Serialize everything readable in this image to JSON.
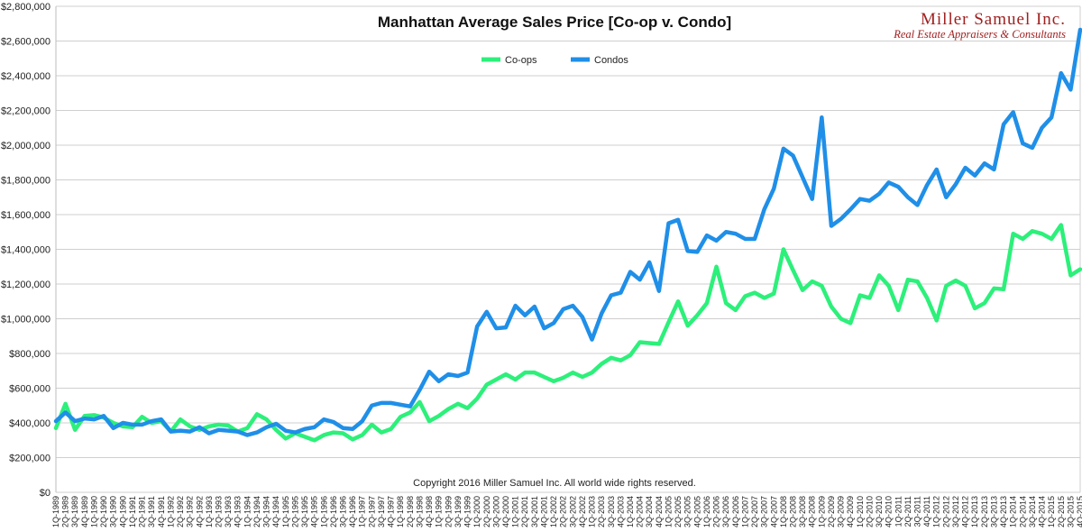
{
  "chart_data": {
    "type": "line",
    "title": "Manhattan Average Sales Price [Co-op v. Condo]",
    "xlabel": "",
    "ylabel": "",
    "ylim": [
      0,
      2800000
    ],
    "ytick_labels": [
      "$0",
      "$200,000",
      "$400,000",
      "$600,000",
      "$800,000",
      "$1,000,000",
      "$1,200,000",
      "$1,400,000",
      "$1,600,000",
      "$1,800,000",
      "$2,000,000",
      "$2,200,000",
      "$2,400,000",
      "$2,600,000",
      "$2,800,000"
    ],
    "grid": "horizontal",
    "legend": "top-center",
    "annotation": "Copyright 2016 Miller Samuel Inc.  All world wide rights reserved.",
    "x": [
      "1Q-1989",
      "2Q-1989",
      "3Q-1989",
      "4Q-1989",
      "1Q-1990",
      "2Q-1990",
      "3Q-1990",
      "4Q-1990",
      "1Q-1991",
      "2Q-1991",
      "3Q-1991",
      "4Q-1991",
      "1Q-1992",
      "2Q-1992",
      "3Q-1992",
      "4Q-1992",
      "1Q-1993",
      "2Q-1993",
      "3Q-1993",
      "4Q-1993",
      "1Q-1994",
      "2Q-1994",
      "3Q-1994",
      "4Q-1994",
      "1Q-1995",
      "2Q-1995",
      "3Q-1995",
      "4Q-1995",
      "1Q-1996",
      "2Q-1996",
      "3Q-1996",
      "4Q-1996",
      "1Q-1997",
      "2Q-1997",
      "3Q-1997",
      "4Q-1997",
      "1Q-1998",
      "2Q-1998",
      "3Q-1998",
      "4Q-1998",
      "1Q-1999",
      "2Q-1999",
      "3Q-1999",
      "4Q-1999",
      "1Q-2000",
      "2Q-2000",
      "3Q-2000",
      "4Q-2000",
      "1Q-2001",
      "2Q-2001",
      "3Q-2001",
      "4Q-2001",
      "1Q-2002",
      "2Q-2002",
      "3Q-2002",
      "4Q-2002",
      "1Q-2003",
      "2Q-2003",
      "3Q-2003",
      "4Q-2003",
      "1Q-2004",
      "2Q-2004",
      "3Q-2004",
      "4Q-2004",
      "1Q-2005",
      "2Q-2005",
      "3Q-2005",
      "4Q-2005",
      "1Q-2006",
      "2Q-2006",
      "3Q-2006",
      "4Q-2006",
      "1Q-2007",
      "2Q-2007",
      "3Q-2007",
      "4Q-2007",
      "1Q-2008",
      "2Q-2008",
      "3Q-2008",
      "4Q-2008",
      "1Q-2009",
      "2Q-2009",
      "3Q-2009",
      "4Q-2009",
      "1Q-2010",
      "2Q-2010",
      "3Q-2010",
      "4Q-2010",
      "1Q-2011",
      "2Q-2011",
      "3Q-2011",
      "4Q-2011",
      "1Q-2012",
      "2Q-2012",
      "3Q-2012",
      "4Q-2012",
      "1Q-2013",
      "2Q-2013",
      "3Q-2013",
      "4Q-2013",
      "1Q-2014",
      "2Q-2014",
      "3Q-2014",
      "4Q-2014",
      "1Q-2015",
      "2Q-2015",
      "3Q-2015",
      "4Q-2015"
    ],
    "series": [
      {
        "name": "Co-ops",
        "color": "#2cf07a",
        "values": [
          370000,
          510000,
          360000,
          440000,
          445000,
          430000,
          400000,
          380000,
          375000,
          435000,
          400000,
          410000,
          350000,
          420000,
          380000,
          360000,
          380000,
          390000,
          385000,
          350000,
          370000,
          450000,
          420000,
          360000,
          310000,
          340000,
          320000,
          300000,
          330000,
          345000,
          340000,
          305000,
          330000,
          390000,
          345000,
          365000,
          435000,
          460000,
          520000,
          410000,
          440000,
          480000,
          510000,
          485000,
          540000,
          620000,
          650000,
          680000,
          650000,
          690000,
          690000,
          665000,
          640000,
          660000,
          690000,
          665000,
          690000,
          740000,
          775000,
          760000,
          790000,
          865000,
          860000,
          855000,
          980000,
          1100000,
          960000,
          1020000,
          1090000,
          1300000,
          1090000,
          1050000,
          1130000,
          1150000,
          1120000,
          1145000,
          1400000,
          1280000,
          1165000,
          1215000,
          1190000,
          1070000,
          1000000,
          975000,
          1135000,
          1120000,
          1250000,
          1190000,
          1050000,
          1225000,
          1215000,
          1120000,
          990000,
          1190000,
          1220000,
          1190000,
          1060000,
          1090000,
          1175000,
          1170000,
          1490000,
          1460000,
          1505000,
          1490000,
          1460000,
          1540000,
          1250000,
          1285000
        ]
      },
      {
        "name": "Condos",
        "color": "#1f8fe8",
        "values": [
          410000,
          460000,
          410000,
          425000,
          420000,
          440000,
          370000,
          400000,
          390000,
          390000,
          410000,
          420000,
          350000,
          355000,
          350000,
          375000,
          340000,
          360000,
          355000,
          350000,
          330000,
          345000,
          375000,
          395000,
          355000,
          345000,
          365000,
          375000,
          420000,
          405000,
          370000,
          365000,
          410000,
          500000,
          515000,
          515000,
          505000,
          495000,
          590000,
          695000,
          640000,
          680000,
          670000,
          690000,
          955000,
          1040000,
          945000,
          950000,
          1075000,
          1020000,
          1070000,
          945000,
          975000,
          1055000,
          1075000,
          1010000,
          880000,
          1030000,
          1135000,
          1150000,
          1270000,
          1225000,
          1325000,
          1160000,
          1550000,
          1570000,
          1390000,
          1385000,
          1480000,
          1450000,
          1500000,
          1490000,
          1460000,
          1460000,
          1630000,
          1750000,
          1980000,
          1940000,
          1815000,
          1690000,
          2160000,
          1535000,
          1575000,
          1630000,
          1690000,
          1680000,
          1720000,
          1785000,
          1760000,
          1700000,
          1655000,
          1770000,
          1860000,
          1700000,
          1775000,
          1870000,
          1825000,
          1895000,
          1860000,
          2120000,
          2190000,
          2010000,
          1985000,
          2100000,
          2160000,
          2415000,
          2320000,
          2665000
        ]
      }
    ]
  },
  "logo": {
    "name": "Miller Samuel Inc.",
    "tagline": "Real Estate Appraisers & Consultants"
  }
}
